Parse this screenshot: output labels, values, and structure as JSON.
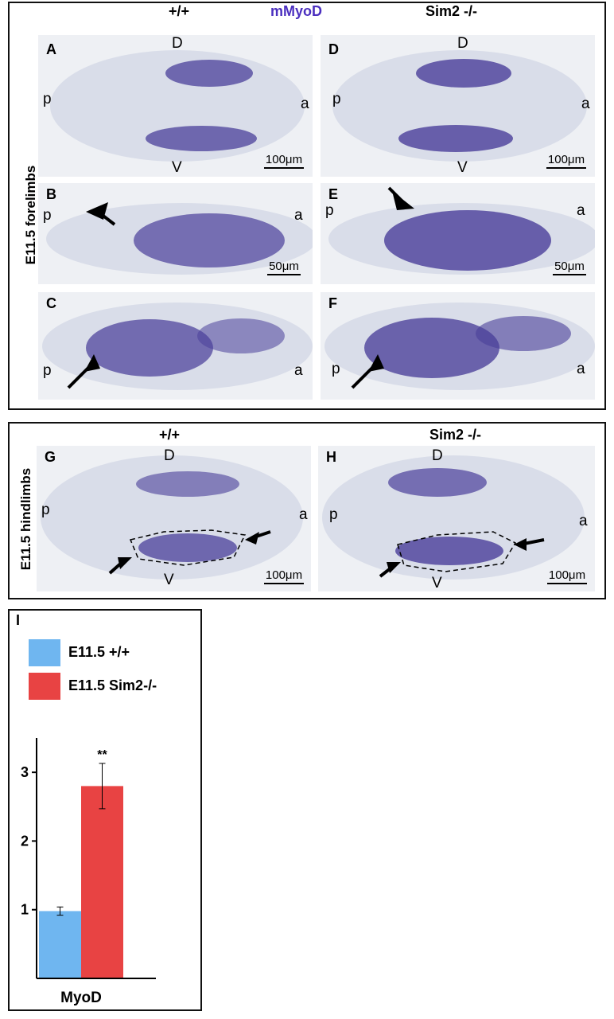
{
  "top_figure": {
    "col_header_left": "+/+",
    "col_header_center": "mMyoD",
    "col_header_right": "Sim2 -/-",
    "side_label": "E11.5 forelimbs",
    "panels": {
      "A": {
        "label": "A",
        "top": "D",
        "bottom": "V",
        "left": "p",
        "right": "a",
        "scale": "100μm"
      },
      "B": {
        "label": "B",
        "left": "p",
        "right": "a",
        "scale": "50μm"
      },
      "C": {
        "label": "C",
        "left": "p",
        "right": "a"
      },
      "D": {
        "label": "D",
        "top": "D",
        "bottom": "V",
        "left": "p",
        "right": "a",
        "scale": "100μm"
      },
      "E": {
        "label": "E",
        "left": "p",
        "right": "a",
        "scale": "50μm"
      },
      "F": {
        "label": "F",
        "left": "p",
        "right": "a"
      }
    }
  },
  "middle_figure": {
    "col_header_left": "+/+",
    "col_header_right": "Sim2 -/-",
    "side_label": "E11.5 hindlimbs",
    "panels": {
      "G": {
        "label": "G",
        "top": "D",
        "bottom": "V",
        "left": "p",
        "right": "a",
        "scale": "100μm"
      },
      "H": {
        "label": "H",
        "top": "D",
        "bottom": "V",
        "left": "p",
        "right": "a",
        "scale": "100μm"
      }
    }
  },
  "chart_panel_label": "I",
  "chart_data": {
    "type": "bar",
    "categories": [
      "MyoD"
    ],
    "series": [
      {
        "name": "E11.5 +/+",
        "values": [
          0.98
        ],
        "error": [
          0.06
        ],
        "color": "#6fb6f0"
      },
      {
        "name": "E11.5 Sim2-/-",
        "values": [
          2.8
        ],
        "error": [
          0.33
        ],
        "color": "#e84343"
      }
    ],
    "significance": [
      "",
      "**"
    ],
    "ylim": [
      0,
      3.5
    ],
    "yticks": [
      1,
      2,
      3
    ],
    "xlabel": "MyoD",
    "ylabel": "",
    "legend_position": "top-left"
  }
}
